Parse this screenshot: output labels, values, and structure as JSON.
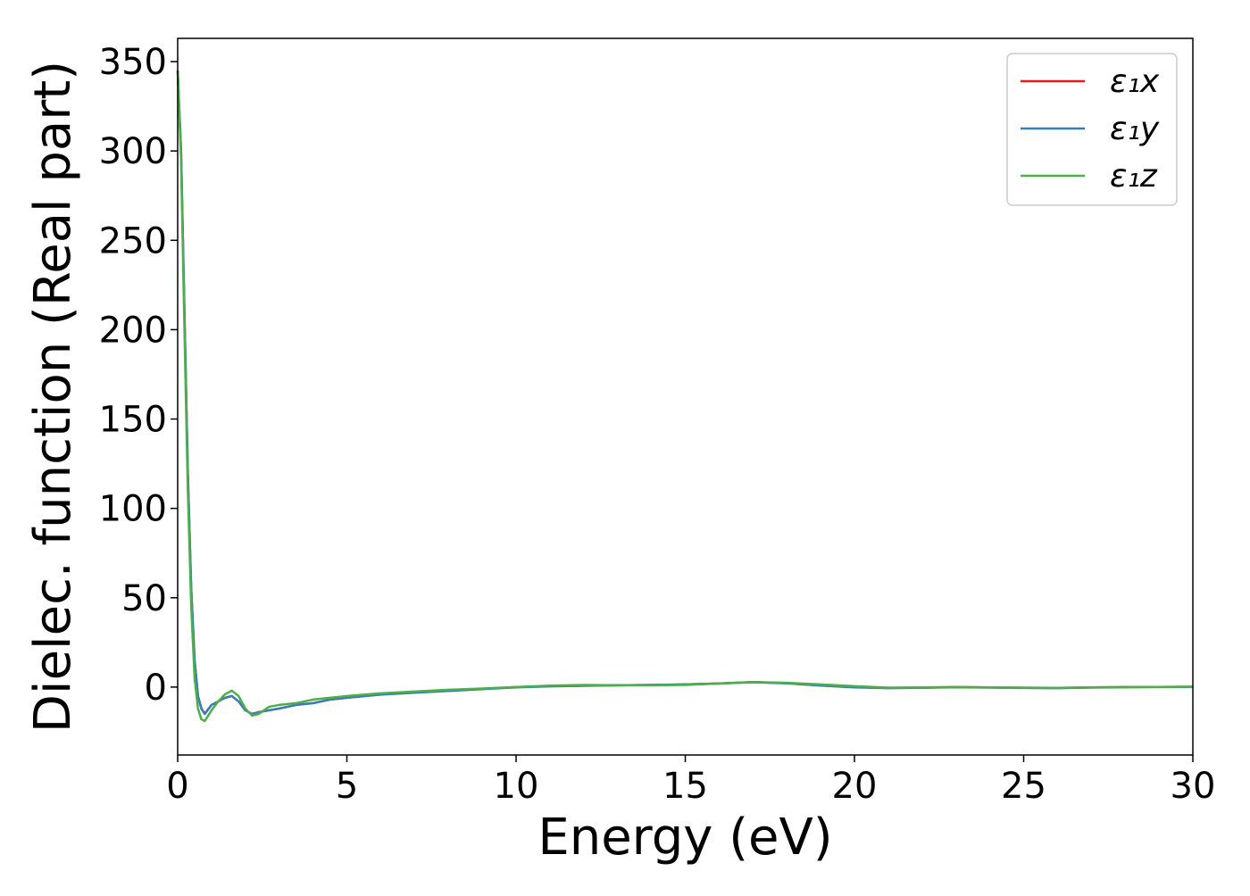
{
  "chart_data": {
    "type": "line",
    "xlabel": "Energy (eV)",
    "ylabel": "Dielec. function (Real part)",
    "xlim": [
      0,
      30
    ],
    "ylim": [
      -38,
      363
    ],
    "xticks": [
      0,
      5,
      10,
      15,
      20,
      25,
      30
    ],
    "yticks": [
      0,
      50,
      100,
      150,
      200,
      250,
      300,
      350
    ],
    "grid": false,
    "legend_position": "top-right",
    "colors": {
      "x": "#e41a1c",
      "y": "#377eb8",
      "z": "#4daf4a"
    },
    "series": [
      {
        "name": "ε₁x",
        "x": [
          0,
          0.1,
          0.2,
          0.3,
          0.4,
          0.5,
          0.6,
          0.7,
          0.8,
          1.0,
          1.2,
          1.4,
          1.6,
          1.8,
          2.0,
          2.2,
          2.4,
          2.7,
          3.0,
          3.5,
          4.0,
          4.5,
          5,
          6,
          7,
          8,
          9,
          10,
          11,
          12,
          13,
          14,
          15,
          16,
          17,
          18,
          19,
          20,
          21,
          22,
          23,
          24,
          25,
          26,
          27,
          28,
          29,
          30
        ],
        "y": [
          345,
          300,
          210,
          120,
          55,
          15,
          -5,
          -12,
          -15,
          -10,
          -8,
          -6,
          -5,
          -8,
          -13,
          -15,
          -14,
          -13,
          -12,
          -10,
          -9,
          -7,
          -6,
          -4,
          -3,
          -2,
          -1,
          0,
          0.5,
          0.8,
          1,
          1.2,
          1.5,
          2,
          2.8,
          2.2,
          1,
          0,
          -0.5,
          -0.3,
          0,
          -0.2,
          -0.4,
          -0.5,
          -0.2,
          0,
          0.1,
          0.2
        ]
      },
      {
        "name": "ε₁y",
        "x": [
          0,
          0.1,
          0.2,
          0.3,
          0.4,
          0.5,
          0.6,
          0.7,
          0.8,
          1.0,
          1.2,
          1.4,
          1.6,
          1.8,
          2.0,
          2.2,
          2.4,
          2.7,
          3.0,
          3.5,
          4.0,
          4.5,
          5,
          6,
          7,
          8,
          9,
          10,
          11,
          12,
          13,
          14,
          15,
          16,
          17,
          18,
          19,
          20,
          21,
          22,
          23,
          24,
          25,
          26,
          27,
          28,
          29,
          30
        ],
        "y": [
          345,
          300,
          210,
          120,
          55,
          15,
          -5,
          -12,
          -15,
          -10,
          -8,
          -6,
          -5,
          -8,
          -13,
          -15,
          -14,
          -13,
          -12,
          -10,
          -9,
          -7,
          -6,
          -4.2,
          -3.2,
          -2.2,
          -1.2,
          -0.2,
          0.4,
          0.7,
          1,
          1.2,
          1.5,
          2,
          2.7,
          2.1,
          0.8,
          -0.2,
          -0.6,
          -0.4,
          -0.1,
          -0.3,
          -0.5,
          -0.6,
          -0.3,
          -0.1,
          0,
          0.1
        ]
      },
      {
        "name": "ε₁z",
        "x": [
          0,
          0.1,
          0.2,
          0.3,
          0.4,
          0.5,
          0.6,
          0.7,
          0.8,
          1.0,
          1.2,
          1.4,
          1.6,
          1.8,
          2.0,
          2.2,
          2.4,
          2.7,
          3.0,
          3.5,
          4.0,
          4.5,
          5,
          6,
          7,
          8,
          9,
          10,
          11,
          12,
          13,
          14,
          15,
          16,
          17,
          18,
          19,
          20,
          21,
          22,
          23,
          24,
          25,
          26,
          27,
          28,
          29,
          30
        ],
        "y": [
          345,
          295,
          200,
          110,
          45,
          5,
          -12,
          -18,
          -19,
          -13,
          -8,
          -4,
          -2,
          -5,
          -12,
          -16,
          -15,
          -11,
          -10,
          -9,
          -7,
          -6,
          -5,
          -3.5,
          -2.5,
          -1.5,
          -0.8,
          0,
          0.8,
          1.2,
          1,
          1,
          1.2,
          2,
          2.8,
          2.4,
          1.5,
          0.5,
          -0.3,
          -0.2,
          0,
          -0.2,
          -0.3,
          -0.4,
          -0.2,
          0,
          0.1,
          0.2
        ]
      }
    ]
  }
}
